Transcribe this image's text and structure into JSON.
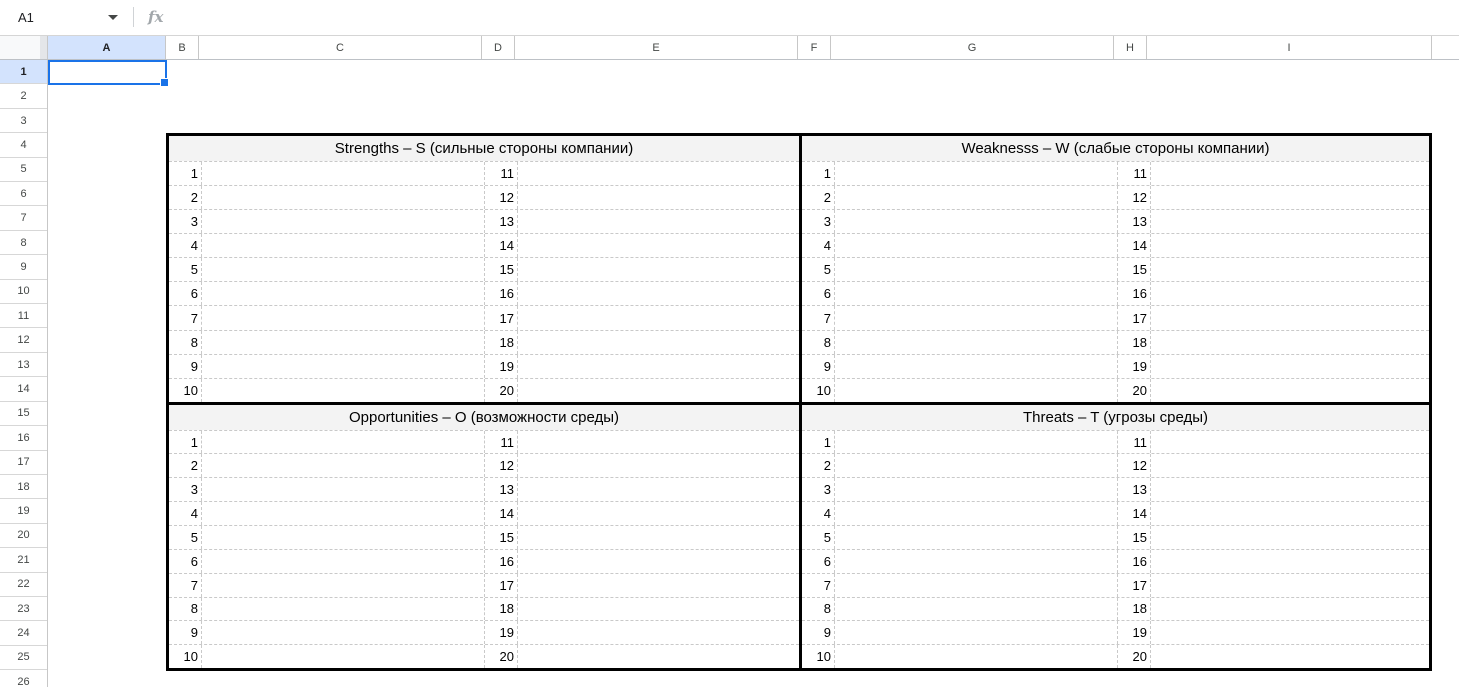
{
  "formula_bar": {
    "name_box": "A1",
    "fx_label": "fx"
  },
  "grid": {
    "column_headers": [
      "A",
      "B",
      "C",
      "D",
      "E",
      "F",
      "G",
      "H",
      "I"
    ],
    "selected_column": "A",
    "selected_row": "1",
    "selected_cell": "A1",
    "row_headers": [
      "1",
      "2",
      "3",
      "4",
      "5",
      "6",
      "7",
      "8",
      "9",
      "10",
      "11",
      "12",
      "13",
      "14",
      "15",
      "16",
      "17",
      "18",
      "19",
      "20",
      "21",
      "22",
      "23",
      "24",
      "25",
      "26"
    ]
  },
  "swot": {
    "quadrants": [
      {
        "title": "Strengths – S (сильные стороны компании)",
        "left_numbers": [
          1,
          2,
          3,
          4,
          5,
          6,
          7,
          8,
          9,
          10
        ],
        "right_numbers": [
          11,
          12,
          13,
          14,
          15,
          16,
          17,
          18,
          19,
          20
        ]
      },
      {
        "title": "Weaknesss – W (слабые стороны компании)",
        "left_numbers": [
          1,
          2,
          3,
          4,
          5,
          6,
          7,
          8,
          9,
          10
        ],
        "right_numbers": [
          11,
          12,
          13,
          14,
          15,
          16,
          17,
          18,
          19,
          20
        ]
      },
      {
        "title": "Opportunities – O (возможности среды)",
        "left_numbers": [
          1,
          2,
          3,
          4,
          5,
          6,
          7,
          8,
          9,
          10
        ],
        "right_numbers": [
          11,
          12,
          13,
          14,
          15,
          16,
          17,
          18,
          19,
          20
        ]
      },
      {
        "title": "Threats – T (угрозы среды)",
        "left_numbers": [
          1,
          2,
          3,
          4,
          5,
          6,
          7,
          8,
          9,
          10
        ],
        "right_numbers": [
          11,
          12,
          13,
          14,
          15,
          16,
          17,
          18,
          19,
          20
        ]
      }
    ]
  },
  "colors": {
    "selection_blue": "#1a73e8",
    "header_highlight_blue": "#d3e3fd",
    "quadrant_header_bg": "#f3f3f3",
    "table_border_black": "#000000",
    "dashed_gridline_gray": "#c9c9c9",
    "header_line_gray": "#c7c7c7"
  }
}
